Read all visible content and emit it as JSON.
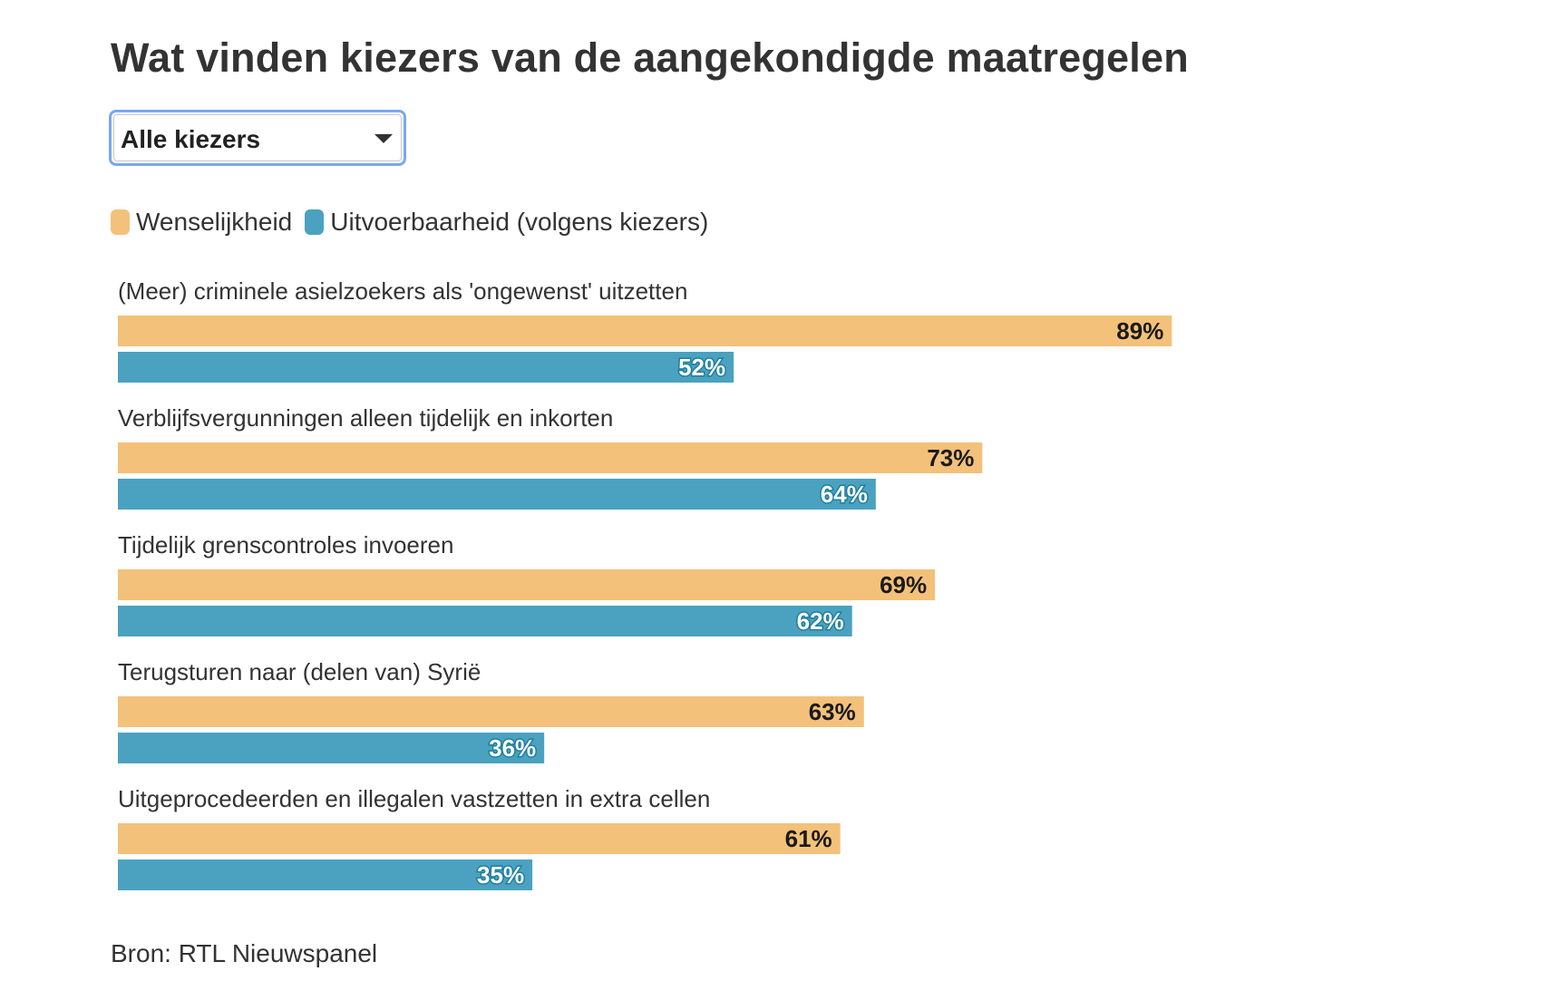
{
  "title": "Wat vinden kiezers van de aangekondigde maatregelen",
  "filter": {
    "selected": "Alle kiezers"
  },
  "legend": [
    {
      "label": "Wenselijkheid",
      "color": "#f3c17a"
    },
    {
      "label": "Uitvoerbaarheid (volgens kiezers)",
      "color": "#4aa2c0"
    }
  ],
  "source": "Bron: RTL Nieuwspanel",
  "chart_data": {
    "type": "bar",
    "orientation": "horizontal",
    "categories": [
      "(Meer) criminele asielzoekers als 'ongewenst' uitzetten",
      "Verblijfsvergunningen alleen tijdelijk en inkorten",
      "Tijdelijk grenscontroles invoeren",
      "Terugsturen naar (delen van) Syrië",
      "Uitgeprocedeerden en illegalen vastzetten in extra cellen"
    ],
    "series": [
      {
        "name": "Wenselijkheid",
        "color": "#f3c17a",
        "label_color": "#1a1a1a",
        "values": [
          89,
          73,
          69,
          63,
          61
        ]
      },
      {
        "name": "Uitvoerbaarheid (volgens kiezers)",
        "color": "#4aa2c0",
        "label_color": "#ffffff",
        "values": [
          52,
          64,
          62,
          36,
          35
        ]
      }
    ],
    "value_suffix": "%",
    "xlim": [
      0,
      100
    ],
    "grid": false,
    "legend_position": "top-left"
  }
}
